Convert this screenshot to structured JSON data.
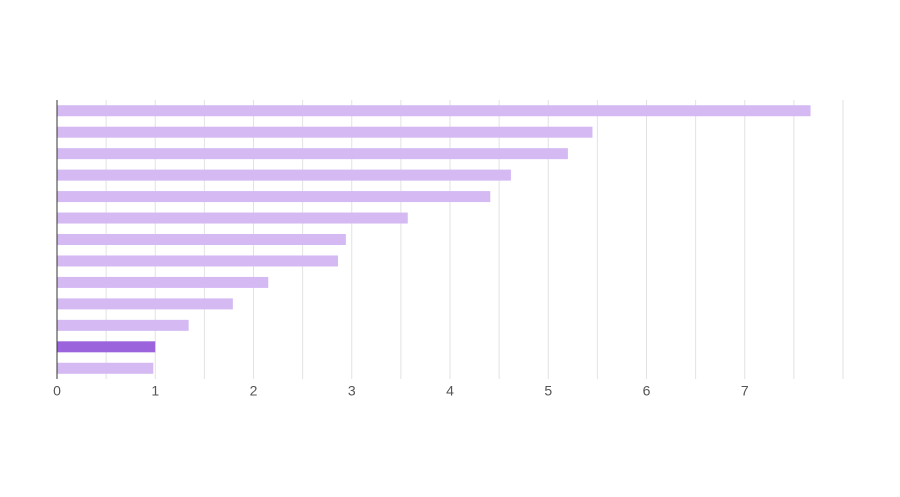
{
  "chart_data": {
    "type": "barh",
    "categories": [
      null,
      null,
      null,
      null,
      null,
      null,
      null,
      null,
      null,
      null,
      null,
      null,
      null
    ],
    "values": [
      7.67,
      5.45,
      5.2,
      4.62,
      4.41,
      3.57,
      2.94,
      2.86,
      2.15,
      1.79,
      1.34,
      1.0,
      0.98
    ],
    "colors": [
      "#d4b9f3",
      "#d4b9f3",
      "#d4b9f3",
      "#d4b9f3",
      "#d4b9f3",
      "#d4b9f3",
      "#d4b9f3",
      "#d4b9f3",
      "#d4b9f3",
      "#d4b9f3",
      "#d4b9f3",
      "#9b63dc",
      "#d4b9f3"
    ],
    "xlim": [
      0,
      8
    ],
    "xticks": [
      0,
      1,
      2,
      3,
      4,
      5,
      6,
      7
    ],
    "grid": [
      0.5,
      1,
      1.5,
      2,
      2.5,
      3,
      3.5,
      4,
      4.5,
      5,
      5.5,
      6,
      6.5,
      7,
      7.5,
      8
    ]
  }
}
